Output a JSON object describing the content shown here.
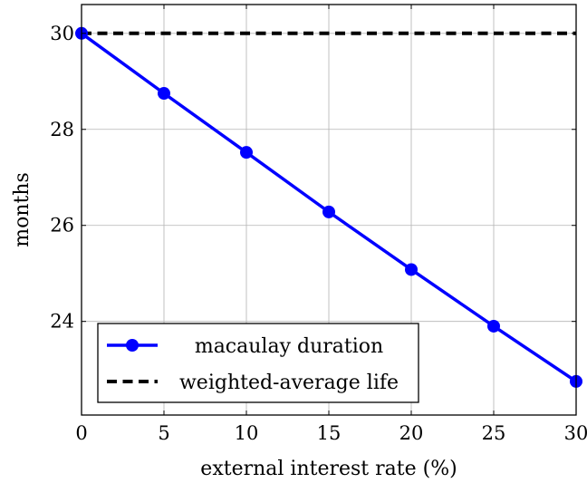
{
  "chart_data": {
    "type": "line",
    "xlabel": "external interest rate (%)",
    "ylabel": "months",
    "xlim": [
      0,
      30
    ],
    "ylim": [
      22.05,
      30.6
    ],
    "xticks": [
      "0",
      "5",
      "10",
      "15",
      "20",
      "25",
      "30"
    ],
    "yticks": [
      "24",
      "26",
      "28",
      "30"
    ],
    "grid": true,
    "legend_position": "bottom-left",
    "series": [
      {
        "name": "macaulay duration",
        "color": "#0000ff",
        "style": "solid",
        "marker": "circle",
        "x": [
          0,
          5,
          10,
          15,
          20,
          25,
          30
        ],
        "y": [
          30.0,
          28.75,
          27.52,
          26.28,
          25.08,
          23.9,
          22.75
        ]
      },
      {
        "name": "weighted-average life",
        "color": "#000000",
        "style": "dashed",
        "marker": "none",
        "x": [
          0,
          30
        ],
        "y": [
          30.0,
          30.0
        ]
      }
    ]
  }
}
